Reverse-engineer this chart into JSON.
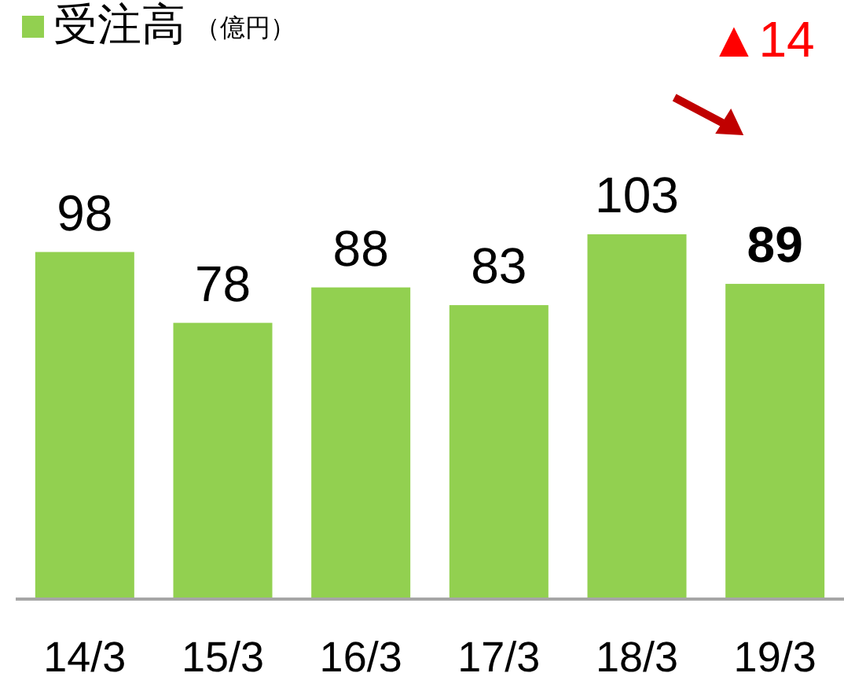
{
  "chart_data": {
    "type": "bar",
    "categories": [
      "14/3",
      "15/3",
      "16/3",
      "17/3",
      "18/3",
      "19/3"
    ],
    "series": [
      {
        "name": "受注高",
        "color": "#92d050",
        "values": [
          98,
          78,
          88,
          83,
          103,
          89
        ]
      }
    ],
    "data_labels": true,
    "legend": "top left",
    "annotations": [
      "（億円）",
      "▲14"
    ]
  }
}
